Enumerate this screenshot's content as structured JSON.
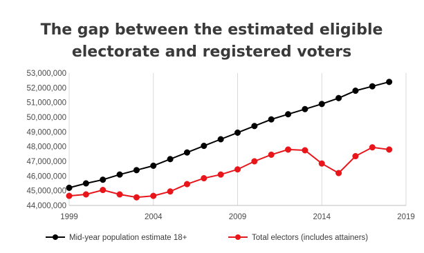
{
  "chart_data": {
    "type": "line",
    "title_lines": [
      "The gap between the estimated eligible",
      "electorate and registered voters"
    ],
    "x": [
      1999,
      2000,
      2001,
      2002,
      2003,
      2004,
      2005,
      2006,
      2007,
      2008,
      2009,
      2010,
      2011,
      2012,
      2013,
      2014,
      2015,
      2016,
      2017,
      2018
    ],
    "xlim": [
      1999,
      2019
    ],
    "x_ticks": [
      1999,
      2004,
      2009,
      2014,
      2019
    ],
    "ylim": [
      44000000,
      53000000
    ],
    "y_ticks": [
      44000000,
      45000000,
      46000000,
      47000000,
      48000000,
      49000000,
      50000000,
      51000000,
      52000000,
      53000000
    ],
    "y_tick_labels": [
      "44,000,000",
      "45,000,000",
      "46,000,000",
      "47,000,000",
      "48,000,000",
      "49,000,000",
      "50,000,000",
      "51,000,000",
      "52,000,000",
      "53,000,000"
    ],
    "grid": "vertical",
    "legend_position": "bottom",
    "series": [
      {
        "name": "Mid-year population estimate 18+",
        "color": "#000000",
        "values": [
          45200000,
          45500000,
          45750000,
          46100000,
          46400000,
          46700000,
          47150000,
          47600000,
          48050000,
          48500000,
          48950000,
          49400000,
          49850000,
          50200000,
          50550000,
          50900000,
          51300000,
          51800000,
          52100000,
          52400000
        ]
      },
      {
        "name": "Total electors (includes attainers)",
        "color": "#e8151b",
        "values": [
          44650000,
          44750000,
          45050000,
          44750000,
          44550000,
          44650000,
          44950000,
          45450000,
          45850000,
          46100000,
          46450000,
          47000000,
          47450000,
          47800000,
          47750000,
          46850000,
          46200000,
          47350000,
          47950000,
          47800000
        ]
      }
    ]
  }
}
